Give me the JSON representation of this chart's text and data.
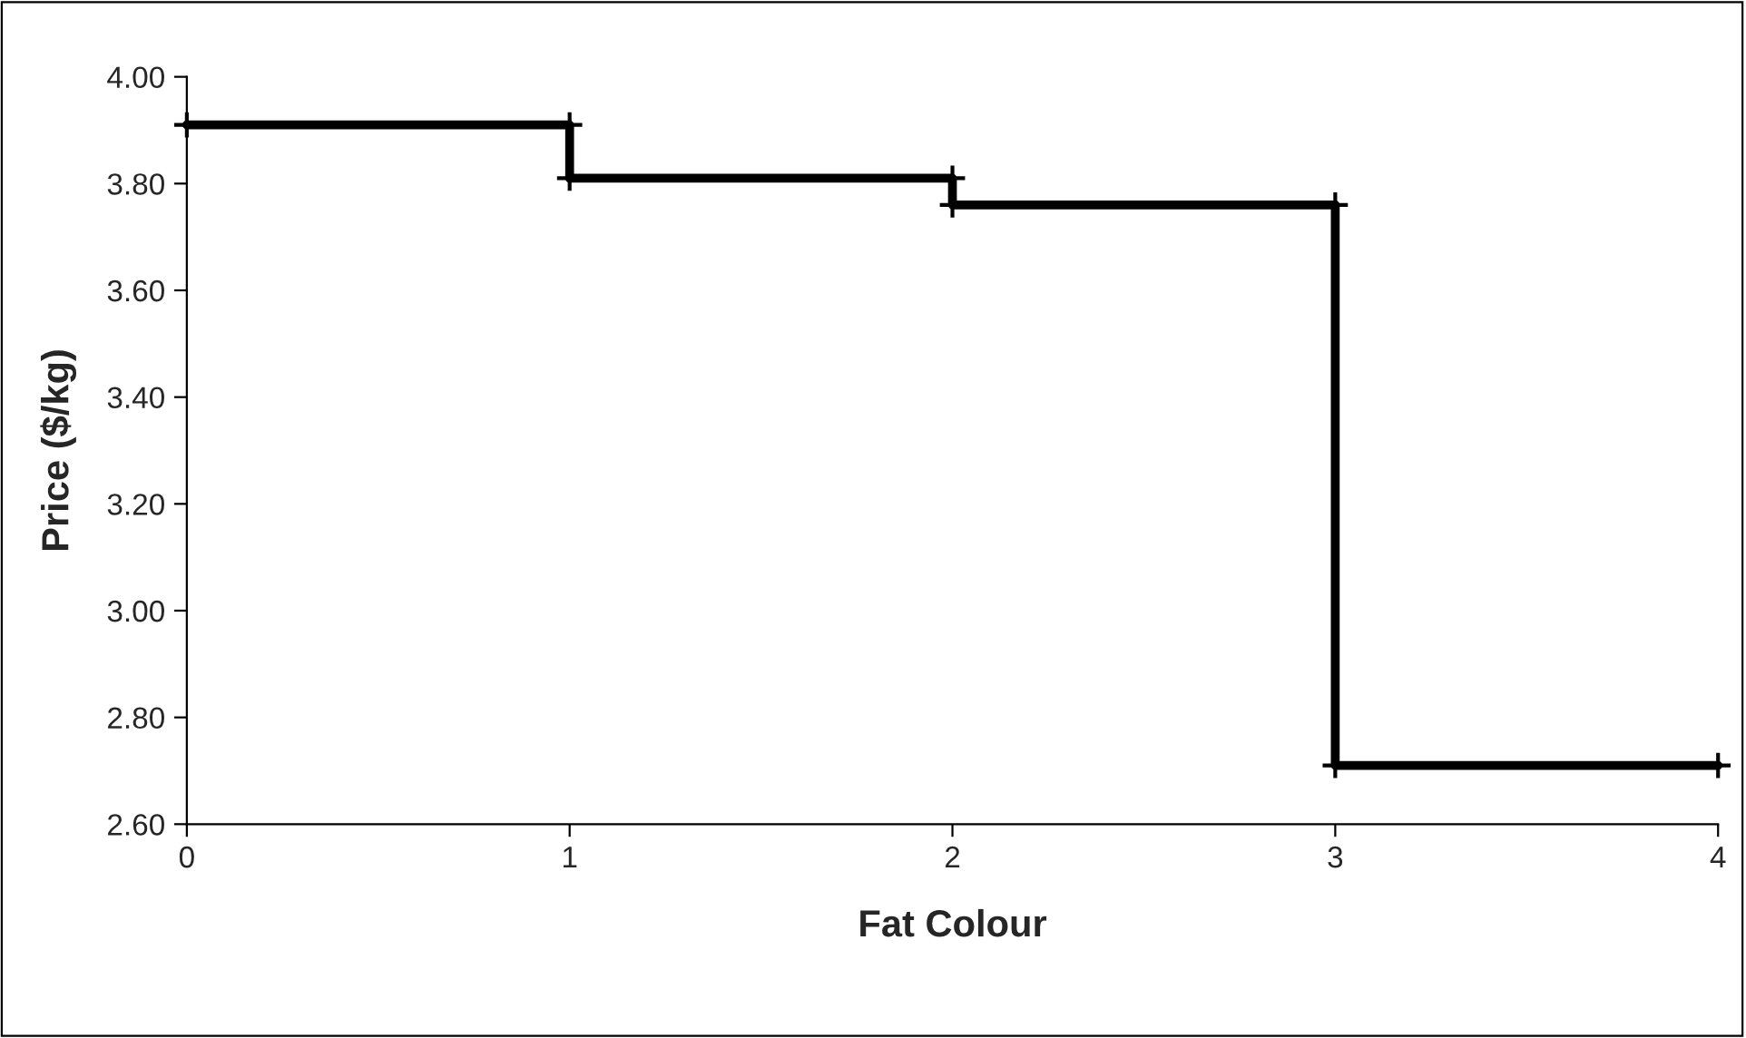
{
  "chart_data": {
    "type": "line",
    "xlabel": "Fat Colour",
    "ylabel": "Price ($/kg)",
    "x": [
      0,
      1,
      1,
      2,
      2,
      3,
      3,
      4
    ],
    "series": [
      {
        "color": "#000000",
        "values": [
          3.91,
          3.91,
          3.81,
          3.81,
          3.76,
          3.76,
          2.71,
          2.71
        ]
      }
    ],
    "xlim": [
      0,
      4
    ],
    "xticks": [
      0,
      1,
      2,
      3,
      4
    ],
    "ylim": [
      2.6,
      4.0
    ],
    "yticks": [
      {
        "value": 2.6,
        "label": "2.60"
      },
      {
        "value": 2.8,
        "label": "2.80"
      },
      {
        "value": 3.0,
        "label": "3.00"
      },
      {
        "value": 3.2,
        "label": "3.20"
      },
      {
        "value": 3.4,
        "label": "3.40"
      },
      {
        "value": 3.6,
        "label": "3.60"
      },
      {
        "value": 3.8,
        "label": "3.80"
      },
      {
        "value": 4.0,
        "label": "4.00"
      }
    ],
    "marker": "cross",
    "line_style": "solid",
    "grid": false,
    "legend": false
  }
}
